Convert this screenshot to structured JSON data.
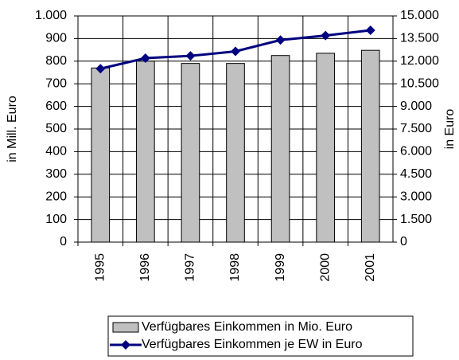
{
  "chart_data": {
    "type": "bar",
    "categories": [
      "1995",
      "1996",
      "1997",
      "1998",
      "1999",
      "2000",
      "2001"
    ],
    "series": [
      {
        "name": "Verfügbares Einkommen in Mio. Euro",
        "type": "bar",
        "color": "#c0c0c0",
        "values": [
          770,
          800,
          790,
          790,
          825,
          835,
          848
        ]
      },
      {
        "name": "Verfügbares Einkommen je EW in Euro",
        "type": "line",
        "axis": "y2",
        "color": "#000080",
        "values": [
          11500,
          12200,
          12350,
          12650,
          13400,
          13700,
          14050
        ]
      }
    ],
    "ylabel": "in Mill. Euro",
    "y2label": "in Euro",
    "ylim": [
      0,
      1000
    ],
    "yticks": [
      0,
      100,
      200,
      300,
      400,
      500,
      600,
      700,
      800,
      900,
      {
        "value": 1000,
        "label": "1.000"
      }
    ],
    "y2lim": [
      0,
      15000
    ],
    "y2ticks": [
      0,
      {
        "value": 1500,
        "label": "1.500"
      },
      {
        "value": 3000,
        "label": "3.000"
      },
      {
        "value": 4500,
        "label": "4.500"
      },
      {
        "value": 6000,
        "label": "6.000"
      },
      {
        "value": 7500,
        "label": "7.500"
      },
      {
        "value": 9000,
        "label": "9.000"
      },
      {
        "value": 10500,
        "label": "10.500"
      },
      {
        "value": 12000,
        "label": "12.000"
      },
      {
        "value": 13500,
        "label": "13.500"
      },
      {
        "value": 15000,
        "label": "15.000"
      }
    ],
    "grid": true,
    "legend": "bottom"
  }
}
